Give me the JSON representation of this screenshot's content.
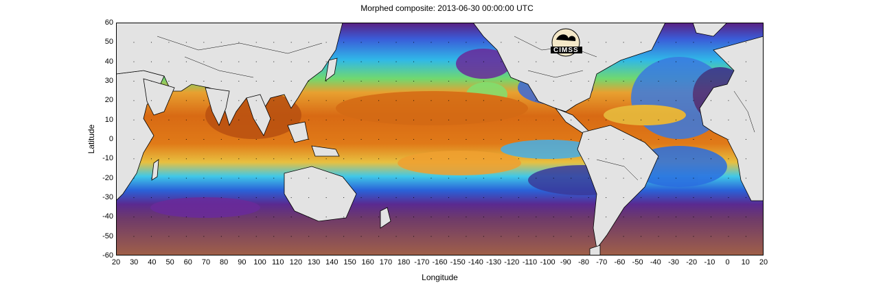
{
  "title": "Morphed composite: 2013-06-30 00:00:00 UTC",
  "xlabel": "Longitude",
  "ylabel": "Latitude",
  "logo_text": "CIMSS",
  "x_ticks": [
    "20",
    "30",
    "40",
    "50",
    "60",
    "70",
    "80",
    "90",
    "100",
    "110",
    "120",
    "130",
    "140",
    "150",
    "160",
    "170",
    "180",
    "-170",
    "-160",
    "-150",
    "-140",
    "-130",
    "-120",
    "-110",
    "-100",
    "-90",
    "-80",
    "-70",
    "-60",
    "-50",
    "-40",
    "-30",
    "-20",
    "-10",
    "0",
    "10",
    "20"
  ],
  "y_ticks": [
    "60",
    "50",
    "40",
    "30",
    "20",
    "10",
    "0",
    "-10",
    "-20",
    "-30",
    "-40",
    "-50",
    "-60"
  ],
  "colors": {
    "land": "#e3e3e3",
    "deep_purple": "#3d1468",
    "purple": "#6a2a9a",
    "blue": "#1f5fe0",
    "cyan": "#2ec8f0",
    "green": "#78e068",
    "yellow": "#f0e050",
    "orange": "#e8821c",
    "dark_orange": "#c86010",
    "brown": "#8a5040"
  }
}
